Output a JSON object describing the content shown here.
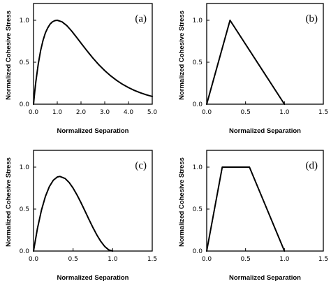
{
  "chart_data": [
    {
      "type": "line",
      "panel_label": "(a)",
      "xlabel": "Normalized Separation",
      "ylabel": "Normalized Cohesive Stress",
      "xlim": [
        0,
        5
      ],
      "ylim": [
        0,
        1.2
      ],
      "xticks": [
        0,
        1,
        2,
        3,
        4,
        5
      ],
      "xtick_labels": [
        "0.0",
        "1.0",
        "2.0",
        "3.0",
        "4.0",
        "5.0"
      ],
      "yticks": [
        0,
        0.5,
        1
      ],
      "ytick_labels": [
        "0.0",
        "0.5",
        "1.0"
      ],
      "series": [
        {
          "x": [
            0,
            0.05,
            0.1,
            0.2,
            0.3,
            0.4,
            0.5,
            0.6,
            0.7,
            0.8,
            0.9,
            1.0,
            1.2,
            1.4,
            1.6,
            1.8,
            2.0,
            2.25,
            2.5,
            2.75,
            3.0,
            3.25,
            3.5,
            3.75,
            4.0,
            4.25,
            4.5,
            4.75,
            5.0
          ],
          "y": [
            0,
            0.145,
            0.272,
            0.48,
            0.64,
            0.76,
            0.85,
            0.91,
            0.955,
            0.982,
            0.996,
            1.0,
            0.982,
            0.937,
            0.874,
            0.802,
            0.728,
            0.637,
            0.55,
            0.47,
            0.4,
            0.338,
            0.284,
            0.237,
            0.198,
            0.164,
            0.136,
            0.112,
            0.092
          ]
        }
      ]
    },
    {
      "type": "line",
      "panel_label": "(b)",
      "xlabel": "Normalized Separation",
      "ylabel": "Normalized Cohesive Stress",
      "xlim": [
        0,
        1.5
      ],
      "ylim": [
        0,
        1.2
      ],
      "xticks": [
        0,
        0.5,
        1,
        1.5
      ],
      "xtick_labels": [
        "0.0",
        "0.5",
        "1.0",
        "1.5"
      ],
      "yticks": [
        0,
        0.5,
        1
      ],
      "ytick_labels": [
        "0.0",
        "0.5",
        "1.0"
      ],
      "series": [
        {
          "x": [
            0,
            0.3,
            1.0
          ],
          "y": [
            0,
            1.0,
            0
          ]
        }
      ]
    },
    {
      "type": "line",
      "panel_label": "(c)",
      "xlabel": "Normalized Separation",
      "ylabel": "Normalized Cohesive Stress",
      "xlim": [
        0,
        1.5
      ],
      "ylim": [
        0,
        1.2
      ],
      "xticks": [
        0,
        0.5,
        1,
        1.5
      ],
      "xtick_labels": [
        "0.0",
        "0.5",
        "1.0",
        "1.5"
      ],
      "yticks": [
        0,
        0.5,
        1
      ],
      "ytick_labels": [
        "0.0",
        "0.5",
        "1.0"
      ],
      "series": [
        {
          "x": [
            0,
            0.05,
            0.1,
            0.15,
            0.2,
            0.25,
            0.3,
            0.333,
            0.4,
            0.45,
            0.5,
            0.55,
            0.6,
            0.65,
            0.7,
            0.75,
            0.8,
            0.85,
            0.9,
            0.95,
            1.0
          ],
          "y": [
            0,
            0.271,
            0.486,
            0.65,
            0.768,
            0.844,
            0.882,
            0.889,
            0.864,
            0.817,
            0.75,
            0.668,
            0.576,
            0.478,
            0.378,
            0.281,
            0.192,
            0.115,
            0.054,
            0.014,
            0
          ]
        }
      ]
    },
    {
      "type": "line",
      "panel_label": "(d)",
      "xlabel": "Normalized Separation",
      "ylabel": "Normalized Cohesive Stress",
      "xlim": [
        0,
        1.5
      ],
      "ylim": [
        0,
        1.2
      ],
      "xticks": [
        0,
        0.5,
        1,
        1.5
      ],
      "xtick_labels": [
        "0.0",
        "0.5",
        "1.0",
        "1.5"
      ],
      "yticks": [
        0,
        0.5,
        1
      ],
      "ytick_labels": [
        "0.0",
        "0.5",
        "1.0"
      ],
      "series": [
        {
          "x": [
            0,
            0.2,
            0.55,
            1.0
          ],
          "y": [
            0,
            1.0,
            1.0,
            0
          ]
        }
      ]
    }
  ]
}
